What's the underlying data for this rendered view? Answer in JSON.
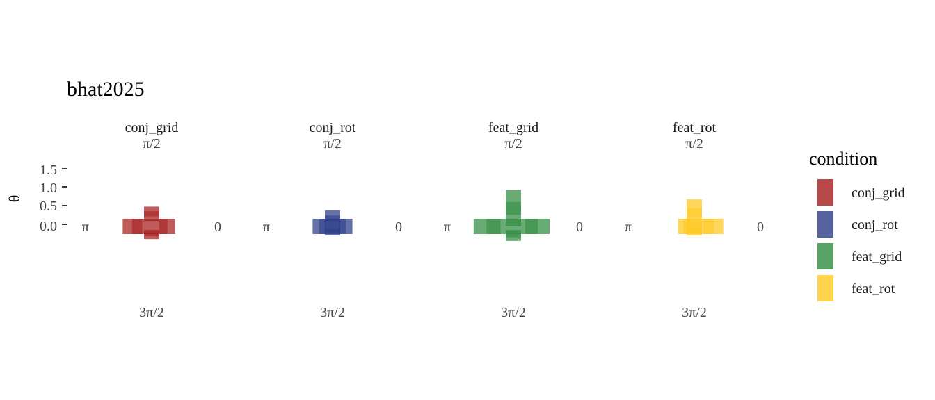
{
  "chart_data": {
    "type": "polar-bar",
    "title": "bhat2025",
    "ylabel": "θ",
    "yticks": [
      "0.0",
      "0.5",
      "1.0",
      "1.5"
    ],
    "ylim": [
      0,
      1.5
    ],
    "angle_labels": {
      "right": "0",
      "top": "π/2",
      "left": "π",
      "bottom": "3π/2"
    },
    "legend_title": "condition",
    "legend_position": "right",
    "panels": [
      {
        "name": "conj_grid",
        "color": "#A51C1C",
        "segments": [
          {
            "direction": "right",
            "start": 0.0,
            "end": 0.65
          },
          {
            "direction": "left",
            "start": 0.0,
            "end": 0.8
          },
          {
            "direction": "up",
            "start": 0.15,
            "end": 0.55
          },
          {
            "direction": "down",
            "start": 0.1,
            "end": 0.35
          }
        ]
      },
      {
        "name": "conj_rot",
        "color": "#2A3B86",
        "segments": [
          {
            "direction": "right",
            "start": 0.0,
            "end": 0.55
          },
          {
            "direction": "left",
            "start": 0.0,
            "end": 0.55
          },
          {
            "direction": "up",
            "start": 0.0,
            "end": 0.45
          },
          {
            "direction": "down",
            "start": 0.0,
            "end": 0.25
          }
        ]
      },
      {
        "name": "feat_grid",
        "color": "#2E8B3E",
        "segments": [
          {
            "direction": "right",
            "start": 0.0,
            "end": 1.0
          },
          {
            "direction": "left",
            "start": 0.0,
            "end": 1.1
          },
          {
            "direction": "up",
            "start": 0.0,
            "end": 1.0
          },
          {
            "direction": "down",
            "start": 0.1,
            "end": 0.4
          }
        ]
      },
      {
        "name": "feat_rot",
        "color": "#FFC81E",
        "segments": [
          {
            "direction": "right",
            "start": 0.0,
            "end": 0.8
          },
          {
            "direction": "left",
            "start": 0.0,
            "end": 0.45
          },
          {
            "direction": "up",
            "start": 0.0,
            "end": 0.75
          },
          {
            "direction": "down",
            "start": 0.0,
            "end": 0.25
          }
        ]
      }
    ]
  }
}
